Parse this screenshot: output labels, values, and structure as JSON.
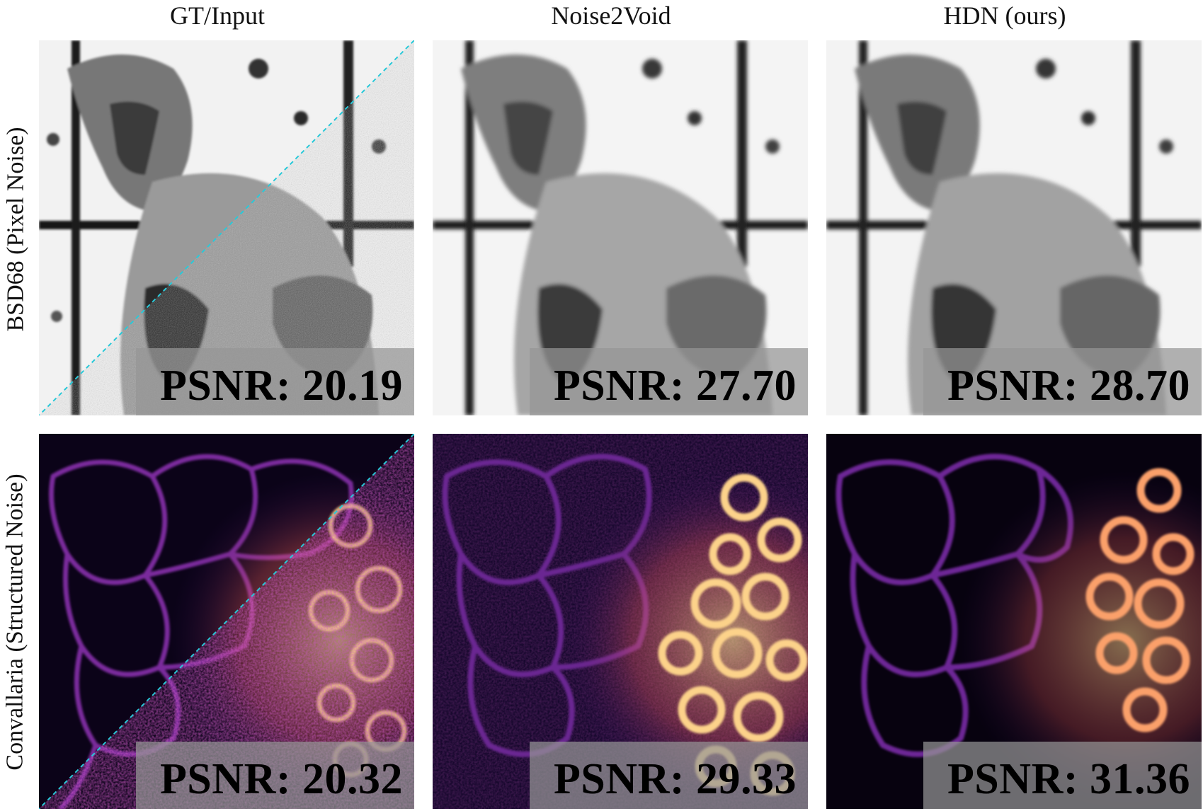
{
  "columns": [
    {
      "title": "GT/Input"
    },
    {
      "title": "Noise2Void"
    },
    {
      "title": "HDN (ours)"
    }
  ],
  "rows": [
    {
      "label": "BSD68 (Pixel Noise)",
      "colormap": "grayscale",
      "panels": [
        {
          "psnr": "PSNR: 20.19",
          "split_view": true
        },
        {
          "psnr": "PSNR: 27.70"
        },
        {
          "psnr": "PSNR: 28.70"
        }
      ]
    },
    {
      "label": "Convallaria (Structured Noise)",
      "colormap": "magma",
      "panels": [
        {
          "psnr": "PSNR: 20.32",
          "split_view": true
        },
        {
          "psnr": "PSNR: 29.33"
        },
        {
          "psnr": "PSNR: 31.36"
        }
      ]
    }
  ],
  "colors": {
    "split_line": "#29c9d9",
    "psnr_box": "#969696",
    "magma_dark": "#0b0318",
    "magma_mid": "#7a2a9c",
    "magma_bright": "#fcd28a"
  }
}
